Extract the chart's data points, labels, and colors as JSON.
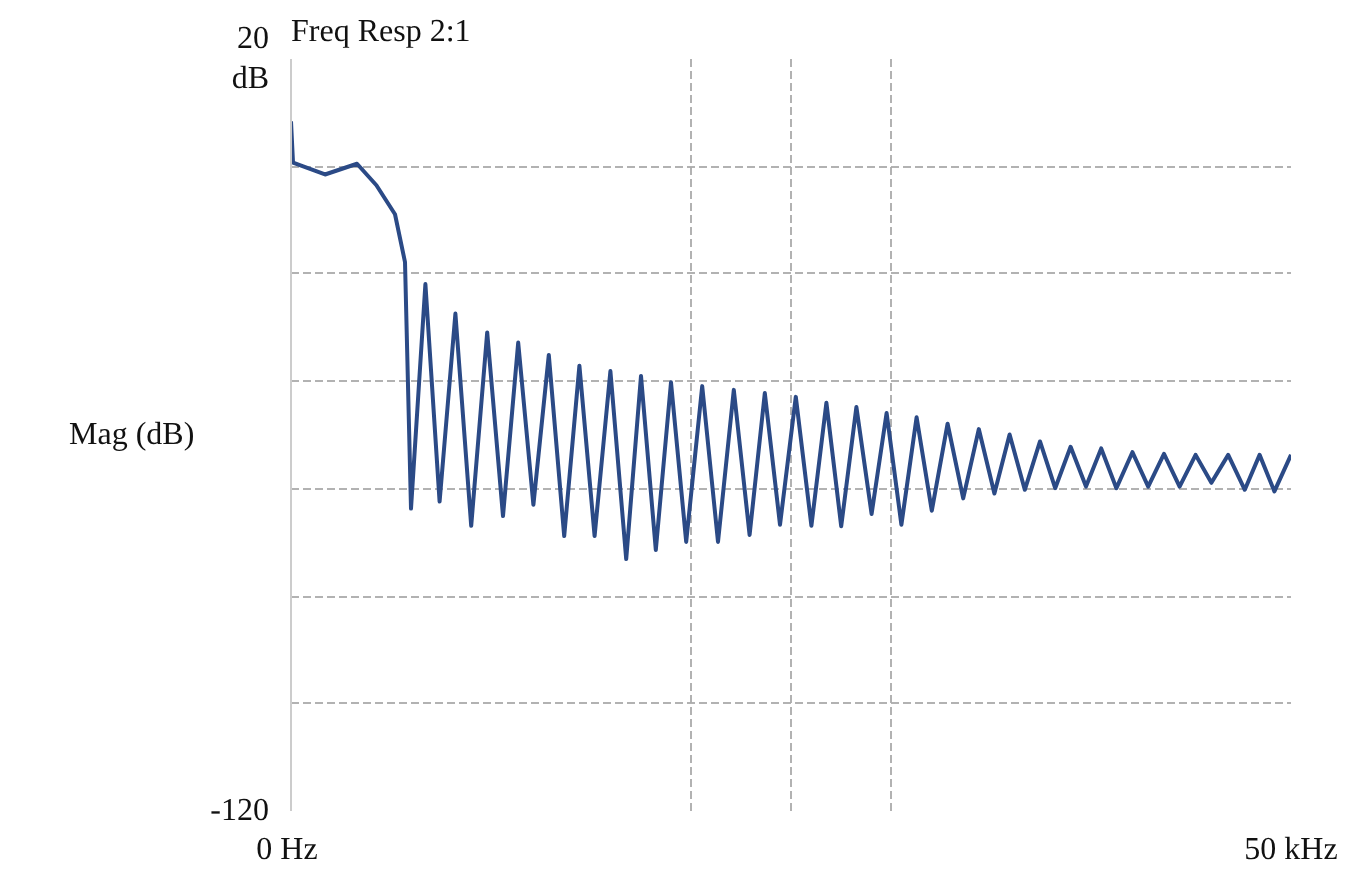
{
  "chart_data": {
    "type": "line",
    "title": "Freq Resp 2:1",
    "ylabel": "Mag (dB)",
    "xlim": [
      0,
      50
    ],
    "ylim": [
      -120,
      20
    ],
    "xticks": [
      {
        "value": 0,
        "label": "0  Hz"
      },
      {
        "value": 20,
        "label": null
      },
      {
        "value": 25,
        "label": null
      },
      {
        "value": 30,
        "label": null
      },
      {
        "value": 50,
        "label": "50 kHz"
      }
    ],
    "yticks": [
      {
        "value": 20,
        "label": "20\ndB"
      },
      {
        "value": 0,
        "label": null
      },
      {
        "value": -20,
        "label": null
      },
      {
        "value": -40,
        "label": null
      },
      {
        "value": -60,
        "label": null
      },
      {
        "value": -80,
        "label": null
      },
      {
        "value": -100,
        "label": null
      },
      -120
    ],
    "grid": true,
    "marker": "none",
    "line_style": "solid",
    "series": [
      {
        "color": "#2b4a86",
        "x": [
          0,
          0.1,
          1.7,
          3.3,
          4.27,
          5.2,
          5.7,
          6.0,
          6.72,
          7.43,
          8.22,
          9.01,
          9.81,
          10.6,
          11.36,
          12.12,
          12.89,
          13.66,
          14.42,
          15.18,
          15.97,
          16.76,
          17.5,
          18.24,
          19.0,
          19.76,
          20.56,
          21.35,
          22.14,
          22.93,
          23.69,
          24.45,
          25.24,
          26.02,
          26.77,
          27.51,
          28.27,
          29.03,
          29.78,
          30.52,
          31.28,
          32.04,
          32.83,
          33.61,
          34.39,
          35.17,
          35.93,
          36.69,
          37.45,
          38.21,
          38.98,
          39.75,
          40.51,
          41.27,
          42.07,
          42.86,
          43.65,
          44.43,
          45.23,
          46.02,
          46.86,
          47.69,
          48.43,
          49.17,
          50
        ],
        "values": [
          8.4,
          0.7,
          -1.5,
          0.5,
          -3.5,
          -8.9,
          -17.8,
          -63.7,
          -21.9,
          -62.4,
          -27.4,
          -66.9,
          -30.9,
          -65.1,
          -32.8,
          -63.0,
          -35.1,
          -68.8,
          -37.1,
          -68.8,
          -38.1,
          -73.1,
          -39.0,
          -71.4,
          -40.2,
          -69.9,
          -40.9,
          -69.9,
          -41.6,
          -68.6,
          -42.2,
          -66.7,
          -42.9,
          -66.9,
          -44.0,
          -67.0,
          -44.8,
          -64.7,
          -45.9,
          -66.7,
          -46.7,
          -64.1,
          -47.9,
          -61.8,
          -48.9,
          -60.9,
          -49.9,
          -60.2,
          -51.2,
          -59.9,
          -52.2,
          -59.6,
          -52.5,
          -59.9,
          -53.2,
          -59.6,
          -53.5,
          -59.6,
          -53.7,
          -58.9,
          -53.7,
          -60.2,
          -53.7,
          -60.5,
          -53.7
        ]
      }
    ]
  }
}
